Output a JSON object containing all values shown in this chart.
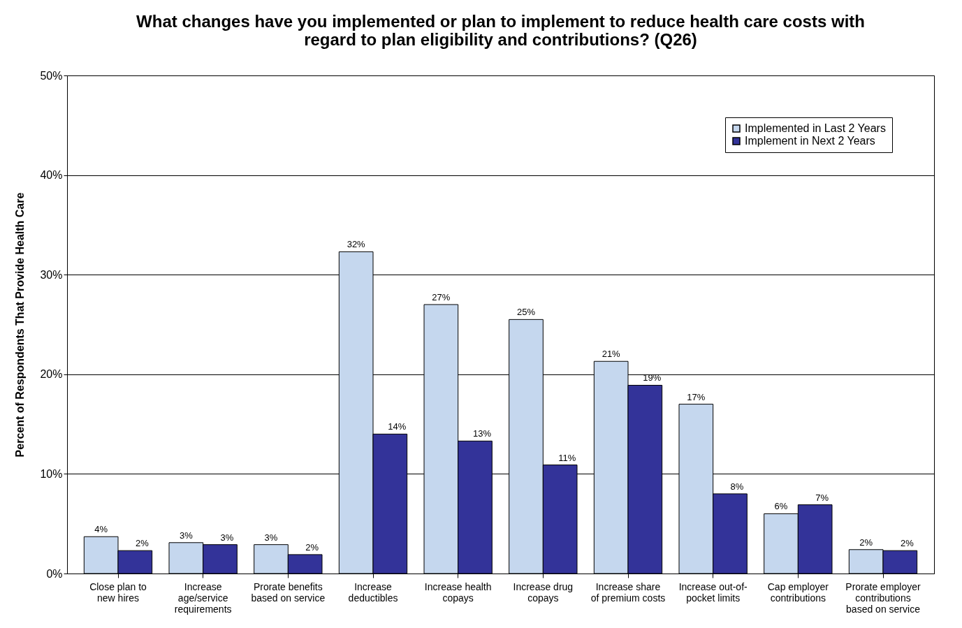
{
  "chart_data": {
    "type": "bar",
    "title": "What changes have you implemented or plan to implement to reduce health care costs with regard to plan eligibility and contributions? (Q26)",
    "ylabel": "Percent of Respondents That  Provide Health Care",
    "categories": [
      "Close plan to new hires",
      "Increase age/service requirements",
      "Prorate benefits based on service",
      "Increase deductibles",
      "Increase health copays",
      "Increase drug copays",
      "Increase share of premium costs",
      "Increase out-of-pocket limits",
      "Cap employer contributions",
      "Prorate employer contributions based on service"
    ],
    "series": [
      {
        "name": "Implemented in Last 2 Years",
        "color": "#c5d7ee",
        "values": [
          3.7,
          3.1,
          2.9,
          32.3,
          27.0,
          25.5,
          21.3,
          17.0,
          6.0,
          2.4
        ],
        "value_labels": [
          "4%",
          "3%",
          "3%",
          "32%",
          "27%",
          "25%",
          "21%",
          "17%",
          "6%",
          "2%"
        ]
      },
      {
        "name": "Implement in Next 2 Years",
        "color": "#333399",
        "values": [
          2.3,
          2.9,
          1.9,
          14.0,
          13.3,
          10.9,
          18.9,
          8.0,
          6.9,
          2.3
        ],
        "value_labels": [
          "2%",
          "3%",
          "2%",
          "14%",
          "13%",
          "11%",
          "19%",
          "8%",
          "7%",
          "2%"
        ]
      }
    ],
    "ylim": [
      0,
      50
    ],
    "yticks": [
      {
        "value": 0,
        "label": "0%"
      },
      {
        "value": 10,
        "label": "10%"
      },
      {
        "value": 20,
        "label": "20%"
      },
      {
        "value": 30,
        "label": "30%"
      },
      {
        "value": 40,
        "label": "40%"
      },
      {
        "value": 50,
        "label": "50%"
      }
    ],
    "grid": "y",
    "legend": "top right"
  }
}
